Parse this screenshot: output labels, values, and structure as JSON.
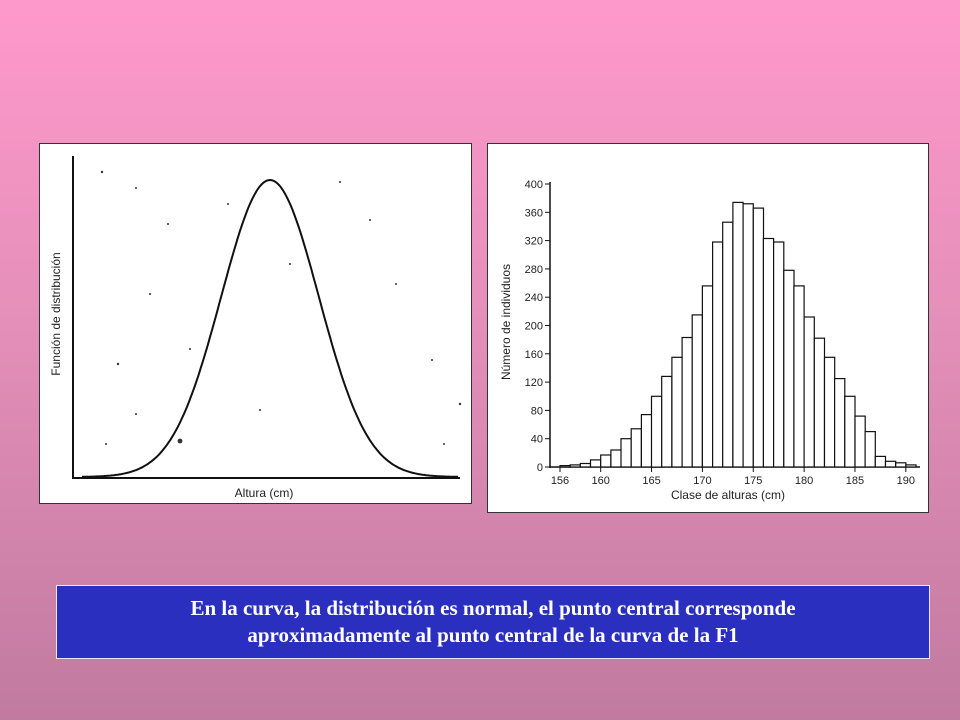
{
  "left_chart": {
    "ylabel": "Función de distribución",
    "xlabel": "Altura (cm)"
  },
  "chart_data": [
    {
      "type": "line",
      "title": "",
      "xlabel": "Altura (cm)",
      "ylabel": "Función de distribución",
      "grid": false,
      "curve": "normal",
      "mean": 0.5,
      "sd": 0.13,
      "xlim": [
        0,
        1
      ],
      "ylim": [
        0,
        1.05
      ]
    },
    {
      "type": "bar",
      "title": "",
      "xlabel": "Clase de alturas (cm)",
      "ylabel": "Número de individuos",
      "ylim": [
        0,
        400
      ],
      "yticks": [
        "0",
        "40",
        "80",
        "120",
        "160",
        "200",
        "240",
        "280",
        "320",
        "360",
        "400"
      ],
      "xticks": [
        "156",
        "160",
        "165",
        "170",
        "175",
        "180",
        "185",
        "190"
      ],
      "xrange": [
        156,
        191
      ],
      "bins_x": [
        156.5,
        157.5,
        158.5,
        159.5,
        160.5,
        161.5,
        162.5,
        163.5,
        164.5,
        165.5,
        166.5,
        167.5,
        168.5,
        169.5,
        170.5,
        171.5,
        172.5,
        173.5,
        174.5,
        175.5,
        176.5,
        177.5,
        178.5,
        179.5,
        180.5,
        181.5,
        182.5,
        183.5,
        184.5,
        185.5,
        186.5,
        187.5,
        188.5,
        189.5,
        190.5
      ],
      "values": [
        2,
        3,
        5,
        10,
        17,
        24,
        40,
        54,
        74,
        100,
        128,
        155,
        183,
        215,
        256,
        318,
        346,
        374,
        372,
        366,
        323,
        318,
        278,
        256,
        212,
        182,
        155,
        125,
        100,
        72,
        50,
        15,
        8,
        6,
        3
      ],
      "grid": false
    }
  ],
  "caption": {
    "line1": "En la curva, la distribución es normal,  el punto central corresponde",
    "line2": "aproximadamente al punto central de la curva de la F1"
  }
}
